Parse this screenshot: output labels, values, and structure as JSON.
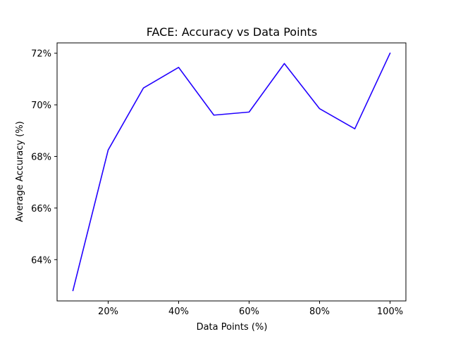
{
  "chart_data": {
    "type": "line",
    "title": "FACE: Accuracy vs Data Points",
    "xlabel": "Data Points (%)",
    "ylabel": "Average Accuracy (%)",
    "x": [
      10,
      20,
      30,
      40,
      50,
      60,
      70,
      80,
      90,
      100
    ],
    "xticks": [
      20,
      40,
      60,
      80,
      100
    ],
    "xtick_labels": [
      "20%",
      "40%",
      "60%",
      "80%",
      "100%"
    ],
    "xlim": [
      5.5,
      104.5
    ],
    "yticks": [
      64,
      66,
      68,
      70,
      72
    ],
    "ytick_labels": [
      "64%",
      "66%",
      "68%",
      "70%",
      "72%"
    ],
    "ylim": [
      62.4,
      72.4
    ],
    "grid": false,
    "series": [
      {
        "values": [
          62.8,
          68.25,
          70.65,
          71.45,
          69.6,
          69.72,
          71.6,
          69.85,
          69.07,
          72.0
        ],
        "color": "#2200ff"
      }
    ]
  }
}
